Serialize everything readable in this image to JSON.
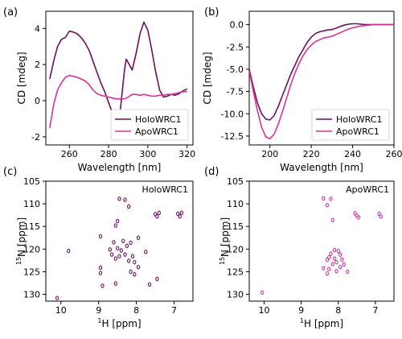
{
  "colors": {
    "holo": "#6b0f5e",
    "apo": "#d6339a",
    "axis": "#000000",
    "background": "#ffffff"
  },
  "chart_data": [
    {
      "panel_label": "(a)",
      "type": "line",
      "xlabel": "Wavelength [nm]",
      "ylabel": "CD [mdeg]",
      "xlim": [
        248,
        323
      ],
      "ylim": [
        -2.45,
        4.95
      ],
      "xticks": [
        260,
        280,
        300,
        320
      ],
      "yticks": [
        -2,
        0,
        2,
        4
      ],
      "legend": {
        "placement": "bottom-right",
        "entries": [
          "HoloWRC1",
          "ApoWRC1"
        ]
      },
      "grid": false,
      "series": [
        {
          "name": "HoloWRC1",
          "color": "holo",
          "x": [
            250,
            252,
            254,
            256,
            258,
            260,
            262,
            264,
            266,
            268,
            270,
            272,
            274,
            276,
            278,
            280,
            282,
            284,
            286,
            288,
            289,
            290,
            292,
            294,
            296,
            298,
            300,
            302,
            304,
            306,
            308,
            310,
            312,
            314,
            316,
            318,
            320
          ],
          "y": [
            1.2,
            2.2,
            3.0,
            3.4,
            3.5,
            3.85,
            3.8,
            3.7,
            3.5,
            3.2,
            2.8,
            2.2,
            1.6,
            1.0,
            0.5,
            -0.1,
            -0.7,
            -0.95,
            -0.5,
            1.6,
            2.3,
            2.1,
            1.7,
            2.6,
            3.7,
            4.35,
            3.9,
            2.8,
            1.6,
            0.6,
            0.2,
            0.25,
            0.35,
            0.3,
            0.4,
            0.55,
            0.65
          ]
        },
        {
          "name": "ApoWRC1",
          "color": "apo",
          "x": [
            250,
            252,
            254,
            256,
            258,
            260,
            262,
            264,
            266,
            268,
            270,
            272,
            274,
            276,
            278,
            280,
            282,
            284,
            286,
            288,
            290,
            292,
            294,
            296,
            298,
            300,
            302,
            304,
            306,
            308,
            310,
            312,
            314,
            316,
            318,
            320
          ],
          "y": [
            -1.5,
            -0.2,
            0.6,
            1.0,
            1.3,
            1.4,
            1.35,
            1.3,
            1.2,
            1.1,
            0.9,
            0.6,
            0.4,
            0.3,
            0.25,
            0.2,
            0.15,
            0.1,
            0.1,
            0.1,
            0.2,
            0.35,
            0.35,
            0.3,
            0.35,
            0.3,
            0.25,
            0.25,
            0.3,
            0.3,
            0.35,
            0.35,
            0.4,
            0.45,
            0.5,
            0.5
          ]
        }
      ]
    },
    {
      "panel_label": "(b)",
      "type": "line",
      "xlabel": "Wavelength [nm]",
      "ylabel": "CD [mdeg]",
      "xlim": [
        190,
        260
      ],
      "ylim": [
        -13.5,
        1.5
      ],
      "xticks": [
        200,
        220,
        240,
        260
      ],
      "yticks": [
        0.0,
        -2.5,
        -5.0,
        -7.5,
        -10.0,
        -12.5
      ],
      "legend": {
        "placement": "bottom-right",
        "entries": [
          "HoloWRC1",
          "ApoWRC1"
        ]
      },
      "grid": false,
      "series": [
        {
          "name": "HoloWRC1",
          "color": "holo",
          "x": [
            190,
            192,
            194,
            196,
            198,
            200,
            202,
            204,
            206,
            208,
            210,
            212,
            214,
            216,
            218,
            220,
            222,
            224,
            226,
            228,
            230,
            232,
            234,
            236,
            238,
            240,
            242,
            244,
            246,
            248,
            250,
            252,
            254,
            256,
            258,
            260
          ],
          "y": [
            -5.0,
            -7.0,
            -8.8,
            -10.0,
            -10.6,
            -10.7,
            -10.2,
            -9.2,
            -8.0,
            -6.8,
            -5.6,
            -4.6,
            -3.6,
            -2.8,
            -2.0,
            -1.4,
            -1.0,
            -0.8,
            -0.7,
            -0.6,
            -0.55,
            -0.4,
            -0.2,
            -0.05,
            0.05,
            0.1,
            0.1,
            0.05,
            0.0,
            0.0,
            0.0,
            0.0,
            0.0,
            0.0,
            0.0,
            0.0
          ]
        },
        {
          "name": "ApoWRC1",
          "color": "apo",
          "x": [
            190,
            192,
            194,
            196,
            198,
            200,
            202,
            204,
            206,
            208,
            210,
            212,
            214,
            216,
            218,
            220,
            222,
            224,
            226,
            228,
            230,
            232,
            234,
            236,
            238,
            240,
            242,
            244,
            246,
            248,
            250,
            252,
            254,
            256,
            258,
            260
          ],
          "y": [
            -5.2,
            -7.5,
            -9.7,
            -11.5,
            -12.6,
            -12.8,
            -12.3,
            -11.2,
            -9.8,
            -8.3,
            -6.8,
            -5.5,
            -4.4,
            -3.5,
            -2.8,
            -2.3,
            -1.9,
            -1.7,
            -1.5,
            -1.4,
            -1.3,
            -1.1,
            -0.9,
            -0.7,
            -0.5,
            -0.35,
            -0.25,
            -0.15,
            -0.1,
            -0.05,
            0.0,
            0.0,
            0.0,
            0.0,
            0.0,
            0.0
          ]
        }
      ]
    },
    {
      "panel_label": "(c)",
      "type": "scatter",
      "inset_label": "HoloWRC1",
      "xlabel_sup": "1",
      "xlabel": "H [ppm]",
      "ylabel_sup": "15",
      "ylabel": "N [ppm]",
      "xlim": [
        10.4,
        6.5
      ],
      "ylim": [
        131.5,
        105
      ],
      "xticks": [
        10,
        9,
        8,
        7
      ],
      "yticks": [
        105,
        110,
        115,
        120,
        125,
        130
      ],
      "grid": false,
      "series": [
        {
          "name": "HoloWRC1",
          "color": "holo",
          "points": [
            [
              8.45,
              108.9
            ],
            [
              8.3,
              109.1
            ],
            [
              8.2,
              110.6
            ],
            [
              7.5,
              112.3
            ],
            [
              7.45,
              112.8
            ],
            [
              7.4,
              112.0
            ],
            [
              6.9,
              112.2
            ],
            [
              6.85,
              112.8
            ],
            [
              6.8,
              112.0
            ],
            [
              8.5,
              113.8
            ],
            [
              8.55,
              114.8
            ],
            [
              8.95,
              117.2
            ],
            [
              8.6,
              118.5
            ],
            [
              8.35,
              118.2
            ],
            [
              8.15,
              118.6
            ],
            [
              7.95,
              117.5
            ],
            [
              8.25,
              119.3
            ],
            [
              8.5,
              119.8
            ],
            [
              8.4,
              120.3
            ],
            [
              9.8,
              120.4
            ],
            [
              8.7,
              120.1
            ],
            [
              8.65,
              121.2
            ],
            [
              8.45,
              121.6
            ],
            [
              8.3,
              121.2
            ],
            [
              8.1,
              121.6
            ],
            [
              7.75,
              120.6
            ],
            [
              8.55,
              122.1
            ],
            [
              8.2,
              122.6
            ],
            [
              8.05,
              122.9
            ],
            [
              7.95,
              124.0
            ],
            [
              8.15,
              125.0
            ],
            [
              8.95,
              124.1
            ],
            [
              8.95,
              125.3
            ],
            [
              8.05,
              125.6
            ],
            [
              7.45,
              126.6
            ],
            [
              8.55,
              127.6
            ],
            [
              8.9,
              128.1
            ],
            [
              7.65,
              127.8
            ],
            [
              10.1,
              130.8
            ]
          ]
        }
      ]
    },
    {
      "panel_label": "(d)",
      "type": "scatter",
      "inset_label": "ApoWRC1",
      "xlabel_sup": "1",
      "xlabel": "H [ppm]",
      "ylabel_sup": "15",
      "ylabel": "N [ppm]",
      "xlim": [
        10.4,
        6.5
      ],
      "ylim": [
        131.5,
        105
      ],
      "xticks": [
        10,
        9,
        8,
        7
      ],
      "yticks": [
        105,
        110,
        115,
        120,
        125,
        130
      ],
      "grid": false,
      "series": [
        {
          "name": "ApoWRC1",
          "color": "apo",
          "points": [
            [
              8.4,
              108.8
            ],
            [
              8.2,
              108.9
            ],
            [
              8.3,
              110.3
            ],
            [
              7.55,
              112.1
            ],
            [
              7.5,
              112.6
            ],
            [
              7.45,
              113.0
            ],
            [
              6.9,
              112.2
            ],
            [
              6.85,
              112.8
            ],
            [
              8.15,
              113.6
            ],
            [
              8.1,
              120.2
            ],
            [
              8.0,
              120.4
            ],
            [
              7.95,
              121.2
            ],
            [
              8.2,
              121.0
            ],
            [
              8.25,
              121.8
            ],
            [
              8.1,
              122.1
            ],
            [
              7.9,
              122.3
            ],
            [
              8.3,
              122.4
            ],
            [
              8.05,
              122.9
            ],
            [
              8.15,
              123.3
            ],
            [
              7.85,
              123.4
            ],
            [
              7.95,
              124.0
            ],
            [
              8.25,
              124.4
            ],
            [
              8.4,
              124.2
            ],
            [
              8.05,
              124.9
            ],
            [
              8.3,
              125.4
            ],
            [
              7.75,
              125.0
            ],
            [
              10.05,
              129.6
            ]
          ]
        }
      ]
    }
  ]
}
